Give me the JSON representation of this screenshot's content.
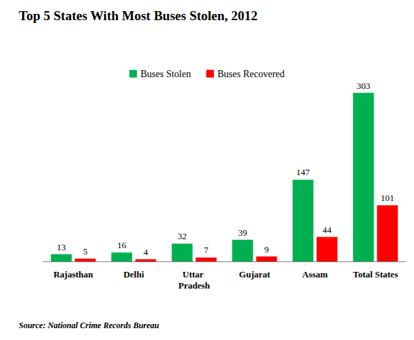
{
  "chart_data": {
    "type": "bar",
    "title": "Top 5 States With Most Buses Stolen, 2012",
    "categories": [
      "Rajasthan",
      "Delhi",
      "Uttar Pradesh",
      "Gujarat",
      "Assam",
      "Total States"
    ],
    "series": [
      {
        "name": "Buses Stolen",
        "color": "#00b050",
        "values": [
          13,
          16,
          32,
          39,
          147,
          303
        ]
      },
      {
        "name": "Buses Recovered",
        "color": "#ff0000",
        "values": [
          5,
          4,
          7,
          9,
          44,
          101
        ]
      }
    ],
    "ylim": [
      0,
      320
    ],
    "grid": false,
    "legend": "top",
    "data_labels": true,
    "tick_labels": "x",
    "source": "Source: National Crime Records Bureau"
  }
}
